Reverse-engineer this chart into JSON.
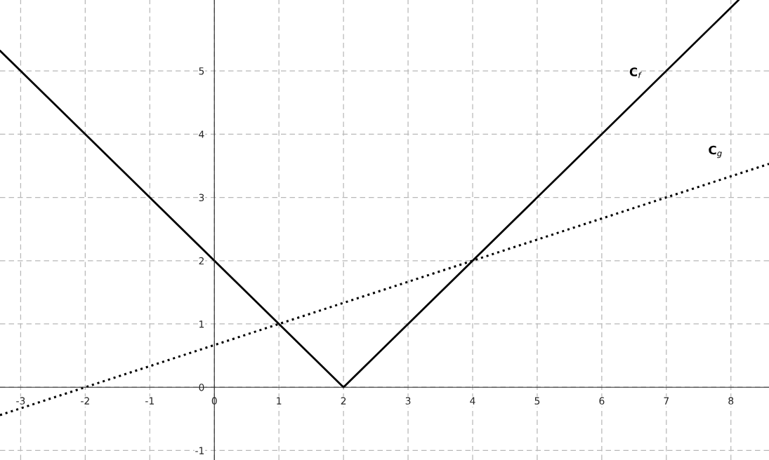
{
  "chart_data": {
    "type": "line",
    "series": [
      {
        "name": "C$_{f}$",
        "color": "#000000",
        "line_style": "solid",
        "x": [
          -3.32,
          2,
          8.12
        ],
        "values": [
          5.32,
          0,
          6.12
        ]
      },
      {
        "name": "C$_{g}$",
        "color": "#000000",
        "line_style": "dotted",
        "x": [
          -3.32,
          8.59
        ],
        "values": [
          -0.44,
          3.53
        ]
      }
    ],
    "xlim": [
      -3.32,
      8.59
    ],
    "ylim": [
      -1.15,
      6.12
    ],
    "xticks": [
      -3,
      -2,
      -1,
      0,
      1,
      2,
      3,
      4,
      5,
      6,
      7,
      8
    ],
    "yticks": [
      -1,
      0,
      1,
      2,
      3,
      4,
      5
    ],
    "grid": true,
    "legend": false,
    "marker": "none"
  }
}
